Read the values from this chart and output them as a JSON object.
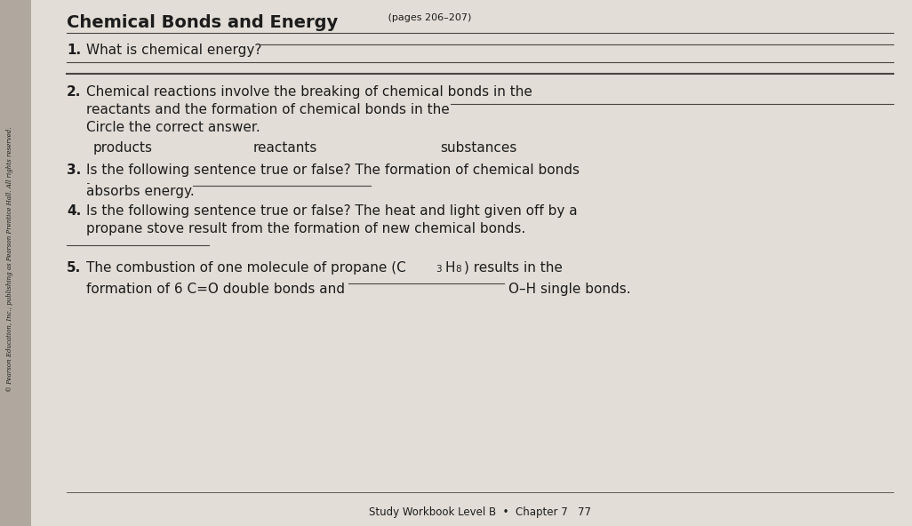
{
  "bg_color": "#ccc8c0",
  "page_color": "#e2ddd6",
  "sidebar_color": "#b0a89e",
  "sidebar_text": "© Pearson Education, Inc., publishing as Pearson Prentice Hall. All rights reserved.",
  "title_bold": "Chemical Bonds and Energy",
  "title_small": " (pages 206–207)",
  "q1_num": "1.",
  "q1_text": "What is chemical energy?",
  "q2_num": "2.",
  "q2_line1": "Chemical reactions involve the breaking of chemical bonds in the",
  "q2_line2": "reactants and the formation of chemical bonds in the",
  "q2_line3": "Circle the correct answer.",
  "q2_choice1": "products",
  "q2_choice2": "reactants",
  "q2_choice3": "substances",
  "q3_num": "3.",
  "q3_line1": "Is the following sentence true or false? The formation of chemical bonds",
  "q3_line2": "absorbs energy.",
  "q4_num": "4.",
  "q4_line1": "Is the following sentence true or false? The heat and light given off by a",
  "q4_line2": "propane stove result from the formation of new chemical bonds.",
  "q5_num": "5.",
  "q5_line1a": "The combustion of one molecule of propane (C",
  "q5_sub3": "3",
  "q5_h": "H",
  "q5_sub8": "8",
  "q5_line1b": ") results in the",
  "q5_line2a": "formation of 6 C=O double bonds and",
  "q5_line2b": "O–H single bonds.",
  "footer": "Study Workbook Level B  •  Chapter 7   77",
  "font_color": "#1c1c1c",
  "line_color": "#4a4540",
  "title_fontsize": 14,
  "small_fontsize": 8,
  "body_fontsize": 11,
  "num_fontsize": 11
}
